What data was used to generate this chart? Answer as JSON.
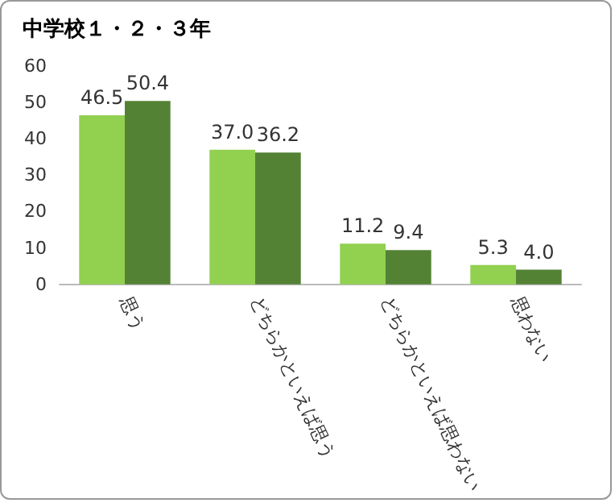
{
  "chart_data": {
    "type": "bar",
    "title": "中学校１・２・３年",
    "categories": [
      "思う",
      "どちらかといえば思う",
      "どちらかといえば思わない",
      "思わない"
    ],
    "series": [
      {
        "color": "#92d050",
        "values": [
          46.5,
          37.0,
          11.2,
          5.3
        ],
        "value_labels": [
          "46.5",
          "37.0",
          "11.2",
          "5.3"
        ]
      },
      {
        "color": "#548235",
        "values": [
          50.4,
          36.2,
          9.4,
          4.0
        ],
        "value_labels": [
          "50.4",
          "36.2",
          "9.4",
          "4.0"
        ]
      }
    ],
    "ylim": [
      0,
      60
    ],
    "yticks": [
      0,
      10,
      20,
      30,
      40,
      50,
      60
    ],
    "grid": false
  }
}
